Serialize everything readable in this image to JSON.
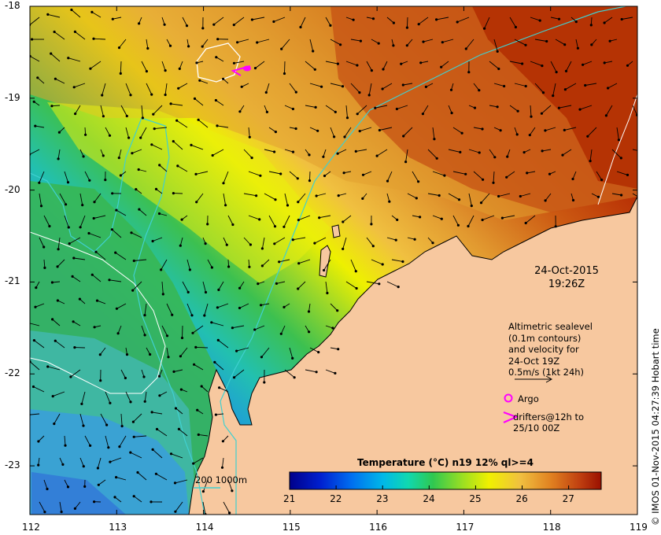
{
  "map": {
    "x_ticks": [
      "112",
      "113",
      "114",
      "115",
      "116",
      "117",
      "118",
      "119"
    ],
    "y_ticks": [
      "-18",
      "-19",
      "-20",
      "-21",
      "-22",
      "-23"
    ],
    "timestamp": {
      "date": "24-Oct-2015",
      "time": "19:26Z"
    },
    "altimetry_note": [
      "Altimetric sealevel",
      "(0.1m contours)",
      "and velocity for",
      "24-Oct 19Z",
      "0.5m/s (1kt 24h)"
    ],
    "argo_label": "Argo",
    "drifters_label": [
      "drifters@12h to",
      "25/10 00Z"
    ],
    "contour_legend": "200  1000m",
    "credit": "© IMOS 01-Nov-2015 04:27:39 Hobart time",
    "colorbar": {
      "title": "Temperature (°C) n19 12% ql>=4",
      "ticks": [
        "21",
        "22",
        "23",
        "24",
        "25",
        "26",
        "27"
      ],
      "min": 21,
      "max": 27.7
    },
    "colors": {
      "land": "#f7c89f",
      "coast": "#000000",
      "isobath": "#40d0d0",
      "sealevel_contour": "#ffffff",
      "argo": "#ff00ff",
      "drifter": "#ff00ff",
      "vector": "#000000"
    }
  }
}
